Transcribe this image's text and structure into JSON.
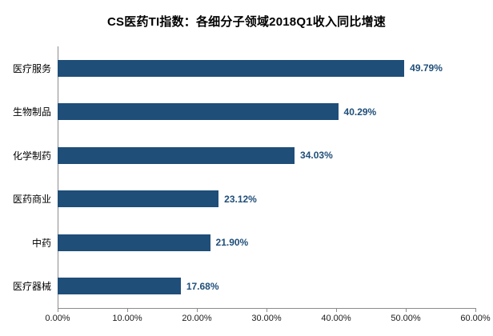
{
  "chart_data": {
    "type": "bar",
    "orientation": "horizontal",
    "title": "CS医药TI指数：各细分子领域2018Q1收入同比增速",
    "categories": [
      "医疗服务",
      "生物制品",
      "化学制药",
      "医药商业",
      "中药",
      "医疗器械"
    ],
    "values": [
      49.79,
      40.29,
      34.03,
      23.12,
      21.9,
      17.68
    ],
    "value_labels": [
      "49.79%",
      "40.29%",
      "34.03%",
      "23.12%",
      "21.90%",
      "17.68%"
    ],
    "x_tick_labels": [
      "0.00%",
      "10.00%",
      "20.00%",
      "30.00%",
      "40.00%",
      "50.00%",
      "60.00%"
    ],
    "xlim": [
      0,
      60
    ],
    "grid": false,
    "legend": "none",
    "xlabel": "",
    "ylabel": "",
    "colors": {
      "bar": "#1F4E79",
      "value_label": "#1F4E79",
      "axis_line": "#8C8C8C",
      "tick_label": "#1A1A1A",
      "category_label": "#000000",
      "title": "#000000",
      "background": "#FFFFFF"
    }
  }
}
